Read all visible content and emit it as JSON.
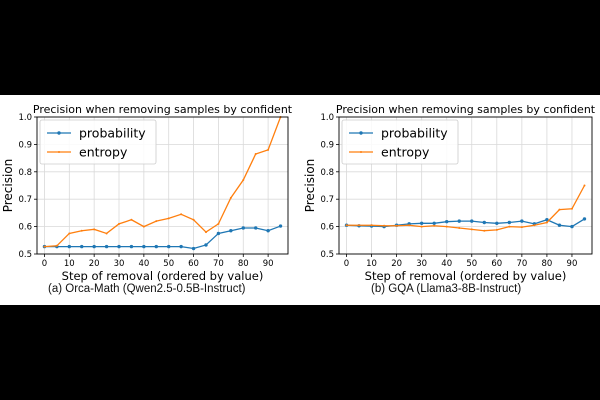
{
  "colors": {
    "probability": "#1f77b4",
    "entropy": "#ff7f0e",
    "grid": "#d9d9d9",
    "axis": "#000000"
  },
  "captions": [
    "(a) Orca-Math (Qwen2.5-0.5B-Instruct)",
    "(b) GQA (Llama3-8B-Instruct)"
  ],
  "chart_data": [
    {
      "type": "line",
      "title": "Precision when removing samples by confident",
      "xlabel": "Step of removal (ordered by value)",
      "ylabel": "Precision",
      "xlim": [
        -3,
        98
      ],
      "ylim": [
        0.5,
        1.0
      ],
      "xticks": [
        0,
        10,
        20,
        30,
        40,
        50,
        60,
        70,
        80,
        90
      ],
      "yticks": [
        0.5,
        0.6,
        0.7,
        0.8,
        0.9,
        1.0
      ],
      "grid": true,
      "legend": "top-left",
      "x": [
        0,
        5,
        10,
        15,
        20,
        25,
        30,
        35,
        40,
        45,
        50,
        55,
        60,
        65,
        70,
        75,
        80,
        85,
        90,
        95
      ],
      "series": [
        {
          "name": "probability",
          "values": [
            0.527,
            0.527,
            0.527,
            0.527,
            0.527,
            0.527,
            0.527,
            0.527,
            0.527,
            0.527,
            0.527,
            0.527,
            0.52,
            0.533,
            0.575,
            0.585,
            0.595,
            0.595,
            0.585,
            0.602
          ]
        },
        {
          "name": "entropy",
          "values": [
            0.527,
            0.53,
            0.575,
            0.585,
            0.59,
            0.575,
            0.61,
            0.625,
            0.6,
            0.62,
            0.63,
            0.645,
            0.625,
            0.58,
            0.61,
            0.705,
            0.77,
            0.865,
            0.88,
            1.0
          ]
        }
      ]
    },
    {
      "type": "line",
      "title": "Precision when removing samples by confident",
      "xlabel": "Step of removal (ordered by value)",
      "ylabel": "Precision",
      "xlim": [
        -3,
        98
      ],
      "ylim": [
        0.5,
        1.0
      ],
      "xticks": [
        0,
        10,
        20,
        30,
        40,
        50,
        60,
        70,
        80,
        90
      ],
      "yticks": [
        0.5,
        0.6,
        0.7,
        0.8,
        0.9,
        1.0
      ],
      "grid": true,
      "legend": "top-left",
      "x": [
        0,
        5,
        10,
        15,
        20,
        25,
        30,
        35,
        40,
        45,
        50,
        55,
        60,
        65,
        70,
        75,
        80,
        85,
        90,
        95
      ],
      "series": [
        {
          "name": "probability",
          "values": [
            0.605,
            0.603,
            0.602,
            0.6,
            0.605,
            0.61,
            0.612,
            0.612,
            0.618,
            0.62,
            0.62,
            0.615,
            0.612,
            0.615,
            0.62,
            0.61,
            0.625,
            0.605,
            0.6,
            0.628
          ]
        },
        {
          "name": "entropy",
          "values": [
            0.605,
            0.605,
            0.605,
            0.603,
            0.603,
            0.605,
            0.6,
            0.603,
            0.6,
            0.595,
            0.59,
            0.585,
            0.588,
            0.6,
            0.598,
            0.605,
            0.615,
            0.662,
            0.665,
            0.75
          ]
        }
      ]
    }
  ]
}
